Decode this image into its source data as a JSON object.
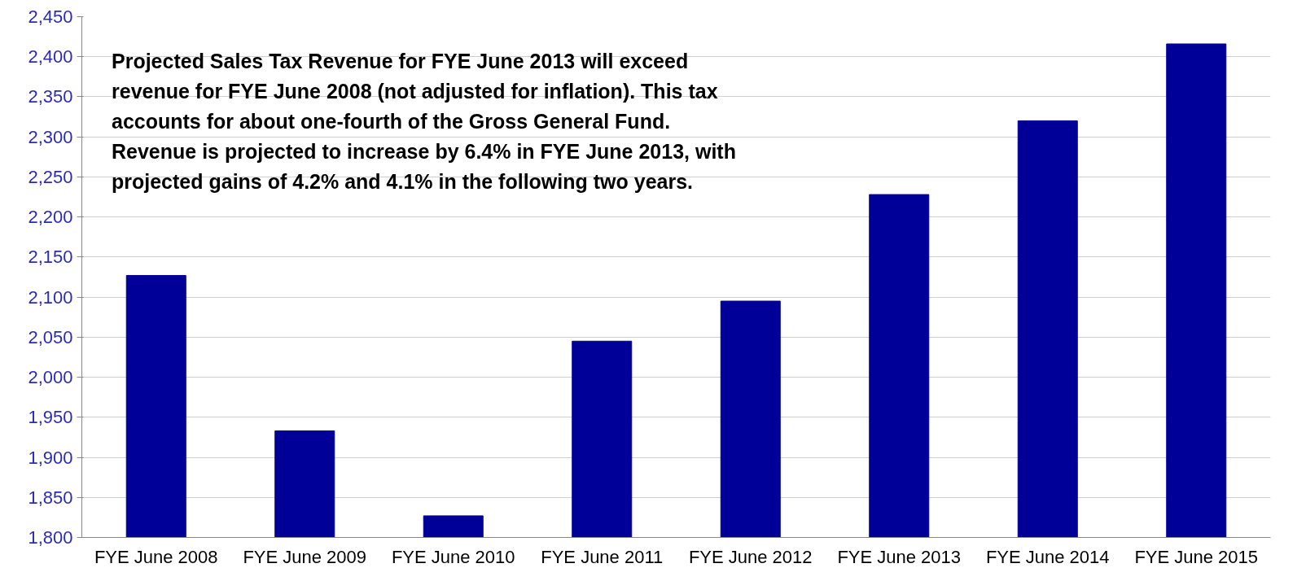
{
  "chart_data": {
    "type": "bar",
    "categories": [
      "FYE June 2008",
      "FYE June 2009",
      "FYE June 2010",
      "FYE June 2011",
      "FYE June 2012",
      "FYE June 2013",
      "FYE June 2014",
      "FYE June 2015"
    ],
    "values": [
      2127,
      1933,
      1827,
      2045,
      2095,
      2228,
      2320,
      2416
    ],
    "color": "#000099",
    "ylim": [
      1800,
      2450
    ],
    "yticks": [
      {
        "value": 1800,
        "label": "1,800"
      },
      {
        "value": 1850,
        "label": "1,850"
      },
      {
        "value": 1900,
        "label": "1,900"
      },
      {
        "value": 1950,
        "label": "1,950"
      },
      {
        "value": 2000,
        "label": "2,000"
      },
      {
        "value": 2050,
        "label": "2,050"
      },
      {
        "value": 2100,
        "label": "2,100"
      },
      {
        "value": 2150,
        "label": "2,150"
      },
      {
        "value": 2200,
        "label": "2,200"
      },
      {
        "value": 2250,
        "label": "2,250"
      },
      {
        "value": 2300,
        "label": "2,300"
      },
      {
        "value": 2350,
        "label": "2,350"
      },
      {
        "value": 2400,
        "label": "2,400"
      },
      {
        "value": 2450,
        "label": "2,450"
      }
    ],
    "grid": "y",
    "annotations": [
      "Projected Sales Tax Revenue for FYE June 2013 will exceed\nrevenue for FYE June 2008 (not adjusted for inflation). This tax\naccounts for about one-fourth of the Gross General Fund.\nRevenue is projected to increase by 6.4% in  FYE June 2013, with\nprojected gains of 4.2% and 4.1% in the following two years."
    ]
  }
}
